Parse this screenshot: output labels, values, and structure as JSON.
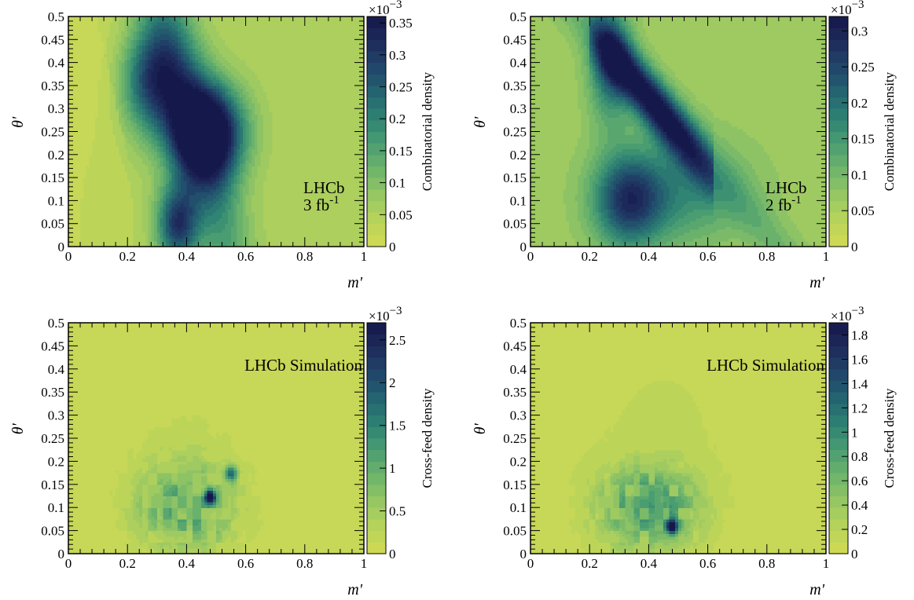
{
  "chart_data": [
    {
      "type": "heatmap",
      "xlabel": "m'",
      "ylabel": "θ'",
      "xlim": [
        0,
        1
      ],
      "ylim": [
        0,
        0.5
      ],
      "x_ticks": [
        "0",
        "0.2",
        "0.4",
        "0.6",
        "0.8",
        "1"
      ],
      "y_ticks": [
        "0",
        "0.05",
        "0.1",
        "0.15",
        "0.2",
        "0.25",
        "0.3",
        "0.35",
        "0.4",
        "0.45",
        "0.5"
      ],
      "colorbar": {
        "label": "Combinatorial density",
        "multiplier": "×10",
        "exponent": "−3",
        "range": [
          0,
          0.36
        ],
        "ticks": [
          "0",
          "0.05",
          "0.1",
          "0.15",
          "0.2",
          "0.25",
          "0.3",
          "0.35"
        ],
        "levels": 20
      },
      "annotation": [
        "LHCb",
        "3 fb",
        "-1"
      ],
      "density_features": [
        {
          "kind": "peak",
          "m": 0.47,
          "theta": 0.25,
          "density": 0.36
        },
        {
          "kind": "ridge",
          "m": 0.28,
          "theta": 0.36,
          "density": 0.22
        },
        {
          "kind": "lobe",
          "m": 0.37,
          "theta": 0.05,
          "density": 0.25
        },
        {
          "kind": "background",
          "density": 0.06
        }
      ]
    },
    {
      "type": "heatmap",
      "xlabel": "m'",
      "ylabel": "θ'",
      "xlim": [
        0,
        1
      ],
      "ylim": [
        0,
        0.5
      ],
      "x_ticks": [
        "0",
        "0.2",
        "0.4",
        "0.6",
        "0.8",
        "1"
      ],
      "y_ticks": [
        "0",
        "0.05",
        "0.1",
        "0.15",
        "0.2",
        "0.25",
        "0.3",
        "0.35",
        "0.4",
        "0.45",
        "0.5"
      ],
      "colorbar": {
        "label": "Combinatorial density",
        "multiplier": "×10",
        "exponent": "−3",
        "range": [
          0,
          0.32
        ],
        "ticks": [
          "0",
          "0.05",
          "0.1",
          "0.15",
          "0.2",
          "0.25",
          "0.3"
        ],
        "levels": 20
      },
      "annotation": [
        "LHCb",
        "2 fb",
        "-1"
      ],
      "density_features": [
        {
          "kind": "peak",
          "m": 0.45,
          "theta": 0.25,
          "density": 0.32
        },
        {
          "kind": "ridge",
          "m": 0.27,
          "theta": 0.4,
          "density": 0.25
        },
        {
          "kind": "lobe",
          "m": 0.33,
          "theta": 0.1,
          "density": 0.18
        },
        {
          "kind": "background",
          "density": 0.07
        }
      ]
    },
    {
      "type": "heatmap",
      "xlabel": "m'",
      "ylabel": "θ'",
      "xlim": [
        0,
        1
      ],
      "ylim": [
        0,
        0.5
      ],
      "x_ticks": [
        "0",
        "0.2",
        "0.4",
        "0.6",
        "0.8",
        "1"
      ],
      "y_ticks": [
        "0",
        "0.05",
        "0.1",
        "0.15",
        "0.2",
        "0.25",
        "0.3",
        "0.35",
        "0.4",
        "0.45",
        "0.5"
      ],
      "colorbar": {
        "label": "Cross-feed density",
        "multiplier": "×10",
        "exponent": "−3",
        "range": [
          0,
          2.7
        ],
        "ticks": [
          "0",
          "0.5",
          "1",
          "1.5",
          "2",
          "2.5"
        ],
        "levels": 20
      },
      "annotation": [
        "LHCb Simulation"
      ],
      "density_features": [
        {
          "kind": "peak",
          "m": 0.48,
          "theta": 0.125,
          "density": 2.6
        },
        {
          "kind": "spot",
          "m": 0.55,
          "theta": 0.175,
          "density": 1.5
        },
        {
          "kind": "cluster",
          "m": 0.4,
          "theta": 0.1,
          "density": 1.3
        },
        {
          "kind": "background",
          "density": 0.15
        }
      ]
    },
    {
      "type": "heatmap",
      "xlabel": "m'",
      "ylabel": "θ'",
      "xlim": [
        0,
        1
      ],
      "ylim": [
        0,
        0.5
      ],
      "x_ticks": [
        "0",
        "0.2",
        "0.4",
        "0.6",
        "0.8",
        "1"
      ],
      "y_ticks": [
        "0",
        "0.05",
        "0.1",
        "0.15",
        "0.2",
        "0.25",
        "0.3",
        "0.35",
        "0.4",
        "0.45",
        "0.5"
      ],
      "colorbar": {
        "label": "Cross-feed density",
        "multiplier": "×10",
        "exponent": "−3",
        "range": [
          0,
          1.9
        ],
        "ticks": [
          "0",
          "0.2",
          "0.4",
          "0.6",
          "0.8",
          "1",
          "1.2",
          "1.4",
          "1.6",
          "1.8"
        ],
        "levels": 20
      },
      "annotation": [
        "LHCb Simulation"
      ],
      "density_features": [
        {
          "kind": "peak",
          "m": 0.48,
          "theta": 0.06,
          "density": 1.85
        },
        {
          "kind": "cluster",
          "m": 0.4,
          "theta": 0.1,
          "density": 1.0
        },
        {
          "kind": "background",
          "density": 0.12
        }
      ]
    }
  ],
  "colors": {
    "palette": [
      "#d3da54",
      "#b9d45a",
      "#97c763",
      "#6fb56b",
      "#4b9e71",
      "#2f8373",
      "#246570",
      "#21476a",
      "#1e2b5c",
      "#15184a"
    ],
    "frame": "#000000",
    "background": "#ffffff"
  }
}
